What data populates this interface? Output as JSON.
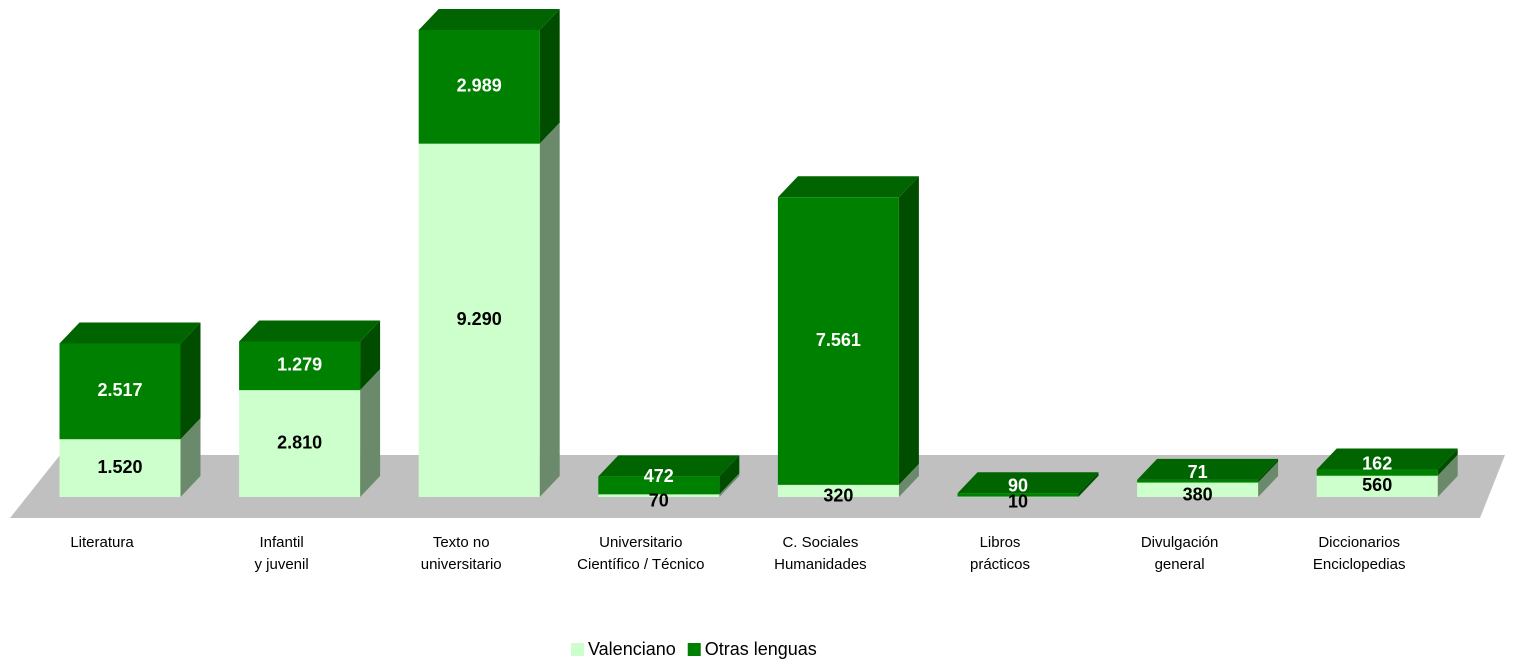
{
  "chart_data": {
    "type": "bar3d_stacked",
    "categories": [
      [
        "Literatura"
      ],
      [
        "Infantil",
        "y juvenil"
      ],
      [
        "Texto no",
        "universitario"
      ],
      [
        "Universitario",
        "Científico / Técnico"
      ],
      [
        "C. Sociales",
        "Humanidades"
      ],
      [
        "Libros",
        "prácticos"
      ],
      [
        "Divulgación",
        "general"
      ],
      [
        "Diccionarios",
        "Enciclopedias"
      ]
    ],
    "series": [
      {
        "name": "Valenciano",
        "color": "#ccffcc",
        "side_color": "#6b8a6b",
        "label_color": "#000000",
        "values": [
          1520,
          2810,
          9290,
          70,
          320,
          10,
          380,
          560
        ],
        "value_labels": [
          "1.520",
          "2.810",
          "9.290",
          "70",
          "320",
          "10",
          "380",
          "560"
        ]
      },
      {
        "name": "Otras lenguas",
        "color": "#008000",
        "side_color": "#004d00",
        "label_color": "#ffffff",
        "values": [
          2517,
          1279,
          2989,
          472,
          7561,
          90,
          71,
          162
        ],
        "value_labels": [
          "2.517",
          "1.279",
          "2.989",
          "472",
          "7.561",
          "90",
          "71",
          "162"
        ]
      }
    ],
    "legend": "bottom"
  }
}
